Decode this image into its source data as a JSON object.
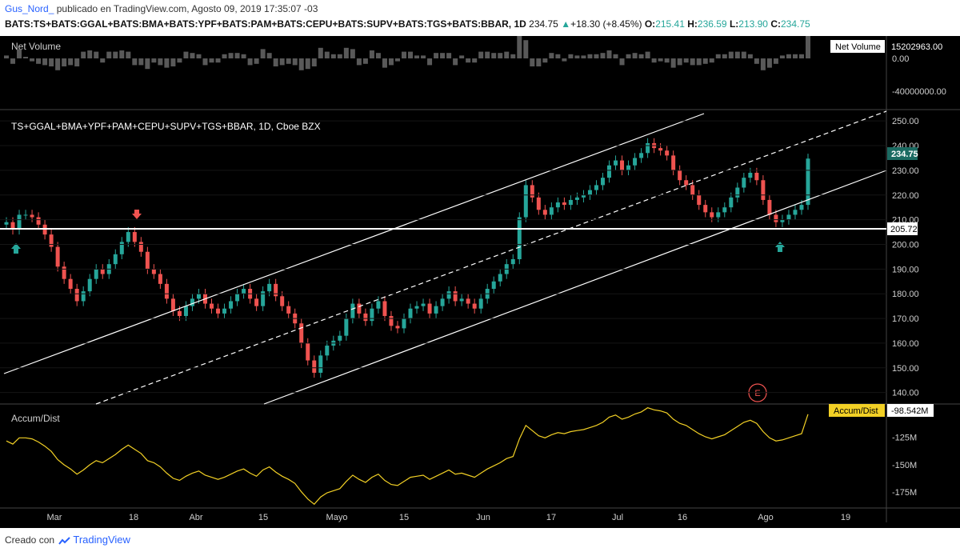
{
  "header": {
    "username": "Gus_Nord_",
    "published": "publicado en TradingView.com, Agosto 09, 2019 17:35:07 -03",
    "symbol": "BATS:TS+BATS:GGAL+BATS:BMA+BATS:YPF+BATS:PAM+BATS:CEPU+BATS:SUPV+BATS:TGS+BATS:BBAR, 1D",
    "last": "234.75",
    "change": "+18.30 (+8.45%)",
    "open_label": "O:",
    "open": "215.41",
    "high_label": "H:",
    "high": "236.59",
    "low_label": "L:",
    "low": "213.90",
    "close_label": "C:",
    "close": "234.75"
  },
  "footer": {
    "created_with": "Creado con",
    "brand": "TradingView"
  },
  "colors": {
    "up": "#26a69a",
    "down": "#ef5350",
    "background": "#000000",
    "accum": "#f2d025",
    "volume": "#555555",
    "current_price_badge": "#1b6b62"
  },
  "chart_data": [
    {
      "type": "candlestick",
      "title": "TS+GGAL+BMA+YPF+PAM+CEPU+SUPV+TGS+BBAR, 1D, Cboe BZX",
      "y_ticks": [
        "250.00",
        "240.00",
        "230.00",
        "220.00",
        "210.00",
        "200.00",
        "190.00",
        "180.00",
        "170.00",
        "160.00",
        "150.00",
        "140.00"
      ],
      "ylim": [
        136,
        252
      ],
      "x_ticks": [
        "Mar",
        "18",
        "Abr",
        "15",
        "Mayo",
        "15",
        "Jun",
        "17",
        "Jul",
        "16",
        "Ago",
        "19"
      ],
      "close": [
        209,
        206,
        212,
        212,
        211,
        208,
        204,
        199,
        191,
        186,
        182,
        177,
        181,
        186,
        190,
        188,
        192,
        196,
        201,
        205,
        201,
        197,
        190,
        188,
        184,
        178,
        173,
        171,
        175,
        178,
        180,
        176,
        174,
        172,
        174,
        177,
        180,
        182,
        178,
        175,
        181,
        184,
        179,
        175,
        172,
        168,
        160,
        153,
        148,
        155,
        159,
        161,
        163,
        170,
        176,
        172,
        169,
        174,
        177,
        171,
        167,
        166,
        170,
        174,
        175,
        176,
        172,
        175,
        178,
        181,
        177,
        178,
        176,
        174,
        178,
        182,
        185,
        188,
        192,
        194,
        211,
        224,
        219,
        214,
        212,
        215,
        217,
        216,
        218,
        219,
        220,
        222,
        224,
        227,
        232,
        234,
        230,
        232,
        235,
        237,
        241,
        239,
        238,
        236,
        230,
        226,
        224,
        220,
        216,
        213,
        211,
        213,
        215,
        219,
        223,
        227,
        229,
        226,
        218,
        212,
        209,
        210,
        212,
        214,
        216,
        234.75
      ],
      "current_price": "234.75",
      "horizontal_level": "205.72",
      "annotations": {
        "earnings_marker": "E"
      }
    },
    {
      "type": "bar",
      "title": "Net Volume",
      "value_label": "15202963.00",
      "y_ticks": [
        "0.00",
        "-40000000.00"
      ]
    },
    {
      "type": "line",
      "title": "Accum/Dist",
      "value_label": "-98.542M",
      "y_ticks": [
        "-125M",
        "-150M",
        "-175M"
      ],
      "ylim": [
        -188,
        -96
      ]
    }
  ]
}
